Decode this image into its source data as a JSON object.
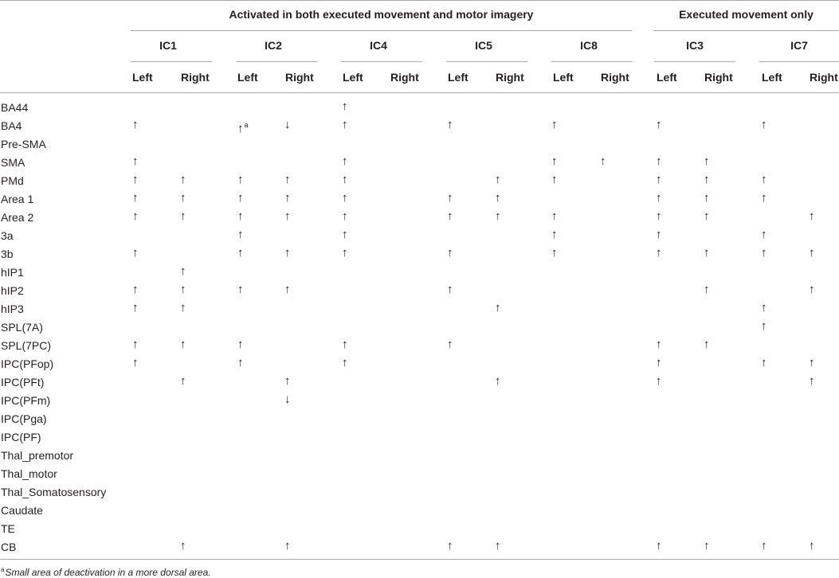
{
  "header": {
    "group_both": "Activated in both executed movement and motor imagery",
    "group_exec": "Executed movement only",
    "components": [
      "IC1",
      "IC2",
      "IC4",
      "IC5",
      "IC8",
      "IC3",
      "IC7"
    ],
    "left_label": "Left",
    "right_label": "Right"
  },
  "symbols": {
    "up": "↑",
    "down": "↓"
  },
  "rows": [
    {
      "label": "BA44",
      "cells": [
        "",
        "",
        "",
        "",
        "up",
        "",
        "",
        "",
        "",
        "",
        "",
        "",
        "",
        ""
      ]
    },
    {
      "label": "BA4",
      "cells": [
        "up",
        "",
        "up",
        "down",
        "up",
        "",
        "up",
        "",
        "up",
        "",
        "up",
        "",
        "up",
        ""
      ],
      "marks": {
        "2": "a"
      }
    },
    {
      "label": "Pre-SMA",
      "cells": [
        "",
        "",
        "",
        "",
        "",
        "",
        "",
        "",
        "",
        "",
        "",
        "",
        "",
        ""
      ]
    },
    {
      "label": "SMA",
      "cells": [
        "up",
        "",
        "",
        "",
        "up",
        "",
        "",
        "",
        "up",
        "up",
        "up",
        "up",
        "",
        ""
      ]
    },
    {
      "label": "PMd",
      "cells": [
        "up",
        "up",
        "up",
        "up",
        "up",
        "",
        "",
        "up",
        "up",
        "",
        "up",
        "up",
        "up",
        ""
      ]
    },
    {
      "label": "Area 1",
      "cells": [
        "up",
        "up",
        "up",
        "up",
        "up",
        "",
        "up",
        "up",
        "",
        "",
        "up",
        "up",
        "up",
        ""
      ]
    },
    {
      "label": "Area 2",
      "cells": [
        "up",
        "up",
        "up",
        "up",
        "up",
        "",
        "up",
        "up",
        "up",
        "",
        "up",
        "up",
        "",
        "up"
      ]
    },
    {
      "label": "3a",
      "cells": [
        "",
        "",
        "up",
        "",
        "up",
        "",
        "",
        "",
        "up",
        "",
        "up",
        "",
        "up",
        ""
      ]
    },
    {
      "label": "3b",
      "cells": [
        "up",
        "",
        "up",
        "up",
        "up",
        "",
        "up",
        "",
        "up",
        "",
        "up",
        "up",
        "up",
        "up"
      ]
    },
    {
      "label": "hIP1",
      "cells": [
        "",
        "up",
        "",
        "",
        "",
        "",
        "",
        "",
        "",
        "",
        "",
        "",
        "",
        ""
      ]
    },
    {
      "label": "hIP2",
      "cells": [
        "up",
        "up",
        "up",
        "up",
        "",
        "",
        "up",
        "",
        "",
        "",
        "",
        "up",
        "",
        "up"
      ]
    },
    {
      "label": "hIP3",
      "cells": [
        "up",
        "up",
        "",
        "",
        "",
        "",
        "",
        "up",
        "",
        "",
        "",
        "",
        "up",
        ""
      ]
    },
    {
      "label": "SPL(7A)",
      "cells": [
        "",
        "",
        "",
        "",
        "",
        "",
        "",
        "",
        "",
        "",
        "",
        "",
        "up",
        ""
      ]
    },
    {
      "label": "SPL(7PC)",
      "cells": [
        "up",
        "up",
        "up",
        "",
        "up",
        "",
        "up",
        "",
        "",
        "",
        "up",
        "up",
        "",
        ""
      ]
    },
    {
      "label": "IPC(PFop)",
      "cells": [
        "up",
        "",
        "up",
        "",
        "up",
        "",
        "",
        "",
        "",
        "",
        "up",
        "",
        "up",
        "up"
      ]
    },
    {
      "label": "IPC(PFt)",
      "cells": [
        "",
        "up",
        "",
        "up",
        "",
        "",
        "",
        "up",
        "",
        "",
        "up",
        "",
        "",
        "up"
      ]
    },
    {
      "label": "IPC(PFm)",
      "cells": [
        "",
        "",
        "",
        "down",
        "",
        "",
        "",
        "",
        "",
        "",
        "",
        "",
        "",
        ""
      ]
    },
    {
      "label": "IPC(Pga)",
      "cells": [
        "",
        "",
        "",
        "",
        "",
        "",
        "",
        "",
        "",
        "",
        "",
        "",
        "",
        ""
      ]
    },
    {
      "label": "IPC(PF)",
      "cells": [
        "",
        "",
        "",
        "",
        "",
        "",
        "",
        "",
        "",
        "",
        "",
        "",
        "",
        ""
      ]
    },
    {
      "label": "Thal_premotor",
      "cells": [
        "",
        "",
        "",
        "",
        "",
        "",
        "",
        "",
        "",
        "",
        "",
        "",
        "",
        ""
      ]
    },
    {
      "label": "Thal_motor",
      "cells": [
        "",
        "",
        "",
        "",
        "",
        "",
        "",
        "",
        "",
        "",
        "",
        "",
        "",
        ""
      ]
    },
    {
      "label": "Thal_Somatosensory",
      "cells": [
        "",
        "",
        "",
        "",
        "",
        "",
        "",
        "",
        "",
        "",
        "",
        "",
        "",
        ""
      ]
    },
    {
      "label": "Caudate",
      "cells": [
        "",
        "",
        "",
        "",
        "",
        "",
        "",
        "",
        "",
        "",
        "",
        "",
        "",
        ""
      ]
    },
    {
      "label": "TE",
      "cells": [
        "",
        "",
        "",
        "",
        "",
        "",
        "",
        "",
        "",
        "",
        "",
        "",
        "",
        ""
      ]
    },
    {
      "label": "CB",
      "cells": [
        "",
        "up",
        "",
        "up",
        "",
        "",
        "up",
        "up",
        "",
        "",
        "up",
        "up",
        "up",
        "up"
      ]
    }
  ],
  "footnote": {
    "marker": "a",
    "text": "Small area of deactivation in a more dorsal area."
  }
}
